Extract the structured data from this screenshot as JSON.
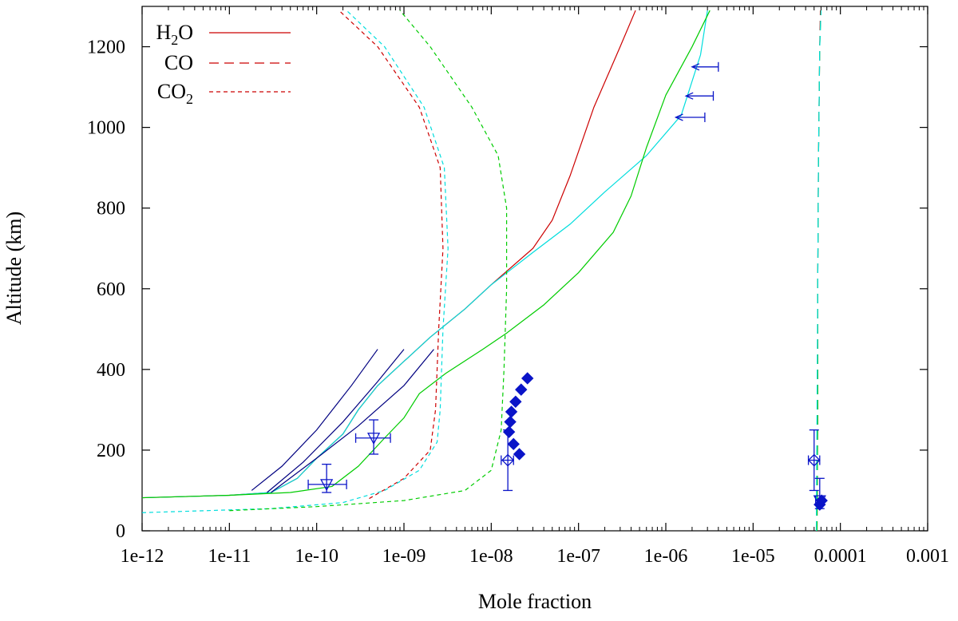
{
  "chart_data": {
    "type": "line",
    "title": "",
    "xlabel": "Mole fraction",
    "ylabel": "Altitude (km)",
    "x_scale": "log",
    "xlim": [
      1e-12,
      0.001
    ],
    "ylim": [
      0,
      1300
    ],
    "grid": false,
    "legend_position": "top-left",
    "x_ticks": [
      1e-12,
      1e-11,
      1e-10,
      1e-09,
      1e-08,
      1e-07,
      1e-06,
      1e-05,
      0.0001,
      0.001
    ],
    "x_tick_labels": [
      "1e-12",
      "1e-11",
      "1e-10",
      "1e-09",
      "1e-08",
      "1e-07",
      "1e-06",
      "1e-05",
      "0.0001",
      "0.001"
    ],
    "y_ticks": [
      0,
      200,
      400,
      600,
      800,
      1000,
      1200
    ],
    "y_tick_labels": [
      "0",
      "200",
      "400",
      "600",
      "800",
      "1000",
      "1200"
    ],
    "legend": [
      {
        "label_main": "H",
        "label_sub": "2",
        "label_tail": "O",
        "color": "#cc0000",
        "dash": "solid"
      },
      {
        "label_main": "CO",
        "label_sub": "",
        "label_tail": "",
        "color": "#cc0000",
        "dash": "long"
      },
      {
        "label_main": "CO",
        "label_sub": "2",
        "label_tail": "",
        "color": "#cc0000",
        "dash": "short"
      }
    ],
    "series": [
      {
        "kind": "H2O",
        "color": "#cc0000",
        "dash": "solid",
        "points": [
          [
            1e-12,
            82
          ],
          [
            1e-11,
            88
          ],
          [
            3e-11,
            95
          ],
          [
            6e-11,
            130
          ],
          [
            1e-10,
            180
          ],
          [
            2e-10,
            240
          ],
          [
            3e-10,
            300
          ],
          [
            5e-10,
            360
          ],
          [
            1e-09,
            420
          ],
          [
            2e-09,
            480
          ],
          [
            5e-09,
            550
          ],
          [
            1e-08,
            610
          ],
          [
            3e-08,
            700
          ],
          [
            5e-08,
            770
          ],
          [
            8e-08,
            880
          ],
          [
            1.5e-07,
            1050
          ],
          [
            3e-07,
            1200
          ],
          [
            4.5e-07,
            1290
          ]
        ]
      },
      {
        "kind": "H2O",
        "color": "#00dddd",
        "dash": "solid",
        "points": [
          [
            1e-12,
            82
          ],
          [
            1e-11,
            88
          ],
          [
            3e-11,
            95
          ],
          [
            6e-11,
            130
          ],
          [
            1e-10,
            180
          ],
          [
            2e-10,
            240
          ],
          [
            3e-10,
            300
          ],
          [
            5e-10,
            360
          ],
          [
            1e-09,
            420
          ],
          [
            2e-09,
            480
          ],
          [
            5e-09,
            550
          ],
          [
            1e-08,
            610
          ],
          [
            3e-08,
            690
          ],
          [
            8e-08,
            760
          ],
          [
            2e-07,
            840
          ],
          [
            6e-07,
            930
          ],
          [
            1.5e-06,
            1030
          ],
          [
            2.5e-06,
            1180
          ],
          [
            3e-06,
            1290
          ]
        ]
      },
      {
        "kind": "H2O",
        "color": "#00cc00",
        "dash": "solid",
        "points": [
          [
            1e-12,
            82
          ],
          [
            1e-11,
            88
          ],
          [
            5e-11,
            95
          ],
          [
            1.5e-10,
            110
          ],
          [
            3e-10,
            160
          ],
          [
            6e-10,
            230
          ],
          [
            1e-09,
            280
          ],
          [
            1.5e-09,
            340
          ],
          [
            3e-09,
            390
          ],
          [
            8e-09,
            450
          ],
          [
            1.5e-08,
            490
          ],
          [
            4e-08,
            560
          ],
          [
            1e-07,
            640
          ],
          [
            2.5e-07,
            740
          ],
          [
            4e-07,
            830
          ],
          [
            6e-07,
            950
          ],
          [
            1e-06,
            1080
          ],
          [
            2e-06,
            1200
          ],
          [
            3.2e-06,
            1290
          ]
        ]
      },
      {
        "kind": "CO",
        "color": "#cc0000",
        "dash": "long",
        "points": [
          [
            5.4e-05,
            0
          ],
          [
            5.5e-05,
            300
          ],
          [
            5.5e-05,
            600
          ],
          [
            5.6e-05,
            900
          ],
          [
            5.8e-05,
            1200
          ],
          [
            5.9e-05,
            1290
          ]
        ]
      },
      {
        "kind": "CO",
        "color": "#00cc00",
        "dash": "long",
        "points": [
          [
            5.4e-05,
            0
          ],
          [
            5.5e-05,
            300
          ],
          [
            5.5e-05,
            600
          ],
          [
            5.6e-05,
            900
          ],
          [
            5.8e-05,
            1200
          ],
          [
            6e-05,
            1290
          ]
        ]
      },
      {
        "kind": "CO",
        "color": "#00dddd",
        "dash": "long",
        "points": [
          [
            5.3e-05,
            0
          ],
          [
            5.4e-05,
            300
          ],
          [
            5.5e-05,
            600
          ],
          [
            5.6e-05,
            900
          ],
          [
            5.8e-05,
            1200
          ],
          [
            6e-05,
            1290
          ]
        ]
      },
      {
        "kind": "CO2",
        "color": "#cc0000",
        "dash": "short",
        "points": [
          [
            4e-10,
            80
          ],
          [
            1e-09,
            130
          ],
          [
            2e-09,
            200
          ],
          [
            2.3e-09,
            300
          ],
          [
            2.5e-09,
            500
          ],
          [
            2.8e-09,
            700
          ],
          [
            2.6e-09,
            900
          ],
          [
            1.5e-09,
            1050
          ],
          [
            5e-10,
            1200
          ],
          [
            1.8e-10,
            1290
          ]
        ]
      },
      {
        "kind": "CO2",
        "color": "#00dddd",
        "dash": "short",
        "points": [
          [
            1e-12,
            45
          ],
          [
            3e-11,
            55
          ],
          [
            2e-10,
            70
          ],
          [
            6e-10,
            100
          ],
          [
            1.5e-09,
            150
          ],
          [
            2.4e-09,
            220
          ],
          [
            2.6e-09,
            300
          ],
          [
            2.8e-09,
            500
          ],
          [
            3.2e-09,
            700
          ],
          [
            2.9e-09,
            900
          ],
          [
            1.7e-09,
            1050
          ],
          [
            6e-10,
            1200
          ],
          [
            2.2e-10,
            1290
          ]
        ]
      },
      {
        "kind": "CO2",
        "color": "#00cc00",
        "dash": "short",
        "points": [
          [
            1e-11,
            50
          ],
          [
            1e-10,
            60
          ],
          [
            1e-09,
            75
          ],
          [
            5e-09,
            100
          ],
          [
            1e-08,
            150
          ],
          [
            1.3e-08,
            250
          ],
          [
            1.4e-08,
            400
          ],
          [
            1.5e-08,
            600
          ],
          [
            1.5e-08,
            800
          ],
          [
            1.2e-08,
            930
          ],
          [
            6e-09,
            1050
          ],
          [
            2e-09,
            1200
          ],
          [
            9e-10,
            1290
          ]
        ]
      },
      {
        "kind": "obs",
        "color": "#000080",
        "dash": "solid",
        "points": [
          [
            1.8e-11,
            100
          ],
          [
            4e-11,
            160
          ],
          [
            1e-10,
            250
          ],
          [
            2.5e-10,
            360
          ],
          [
            5e-10,
            450
          ]
        ]
      },
      {
        "kind": "obs",
        "color": "#000080",
        "dash": "solid",
        "points": [
          [
            2.7e-11,
            95
          ],
          [
            7e-11,
            170
          ],
          [
            2e-10,
            270
          ],
          [
            5e-10,
            370
          ],
          [
            1e-09,
            450
          ]
        ]
      },
      {
        "kind": "obs",
        "color": "#000080",
        "dash": "solid",
        "points": [
          [
            3e-11,
            95
          ],
          [
            1e-10,
            180
          ],
          [
            3e-10,
            260
          ],
          [
            1e-09,
            360
          ],
          [
            2.2e-09,
            450
          ]
        ]
      }
    ],
    "error_points": [
      {
        "marker": "triangle-down",
        "x": 1.3e-10,
        "y": 115,
        "xerr": [
          8e-11,
          2.2e-10
        ],
        "yerr": [
          95,
          165
        ]
      },
      {
        "marker": "triangle-down",
        "x": 4.5e-10,
        "y": 230,
        "xerr": [
          2.8e-10,
          7e-10
        ],
        "yerr": [
          190,
          275
        ]
      },
      {
        "marker": "diamond",
        "x": 1.55e-08,
        "y": 175,
        "xerr": [
          1.3e-08,
          1.8e-08
        ],
        "yerr": [
          100,
          250
        ]
      },
      {
        "marker": "diamond",
        "x": 5e-05,
        "y": 175,
        "xerr": [
          4.3e-05,
          5.8e-05
        ],
        "yerr": [
          100,
          250
        ]
      },
      {
        "marker": "triangle-down",
        "x": 5.8e-05,
        "y": 75,
        "xerr": [
          5.2e-05,
          6.2e-05
        ],
        "yerr": [
          55,
          130
        ]
      }
    ],
    "filled_diamonds": [
      {
        "x": 2.1e-08,
        "y": 190
      },
      {
        "x": 1.8e-08,
        "y": 215
      },
      {
        "x": 1.6e-08,
        "y": 245
      },
      {
        "x": 1.65e-08,
        "y": 270
      },
      {
        "x": 1.7e-08,
        "y": 295
      },
      {
        "x": 1.9e-08,
        "y": 320
      },
      {
        "x": 2.2e-08,
        "y": 350
      },
      {
        "x": 2.6e-08,
        "y": 378
      },
      {
        "x": 5.8e-05,
        "y": 65
      },
      {
        "x": 6.1e-05,
        "y": 75
      }
    ],
    "upper_limits": [
      {
        "x": 4e-06,
        "y": 1150,
        "arrow_to": 2e-06
      },
      {
        "x": 3.5e-06,
        "y": 1078,
        "arrow_to": 1.7e-06
      },
      {
        "x": 2.8e-06,
        "y": 1025,
        "arrow_to": 1.3e-06
      }
    ]
  }
}
